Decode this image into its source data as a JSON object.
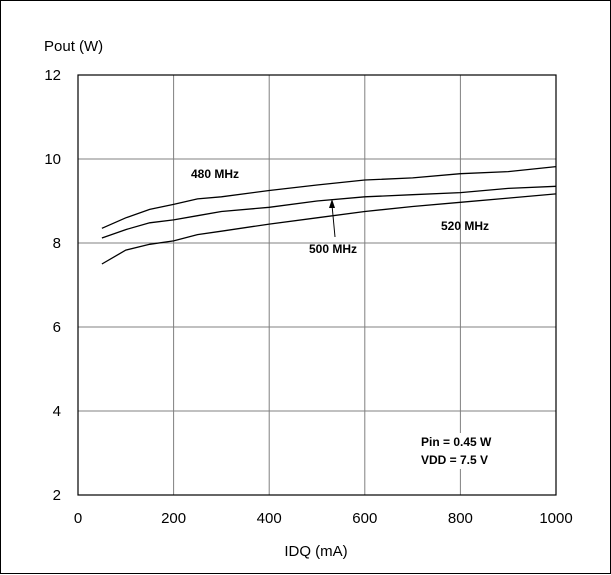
{
  "chart_data": {
    "type": "line",
    "title": "",
    "xlabel": "IDQ (mA)",
    "ylabel": "Pout (W)",
    "xlim": [
      0,
      1000
    ],
    "ylim": [
      2,
      12
    ],
    "x_ticks": [
      0,
      200,
      400,
      600,
      800,
      1000
    ],
    "y_ticks": [
      2,
      4,
      6,
      8,
      10,
      12
    ],
    "grid": true,
    "legend": "none",
    "x": [
      50,
      100,
      150,
      200,
      250,
      300,
      400,
      500,
      600,
      700,
      800,
      900,
      1000
    ],
    "series": [
      {
        "name": "480 MHz",
        "values": [
          8.35,
          8.6,
          8.8,
          8.92,
          9.05,
          9.1,
          9.25,
          9.38,
          9.5,
          9.55,
          9.65,
          9.7,
          9.82
        ]
      },
      {
        "name": "500 MHz",
        "values": [
          8.12,
          8.32,
          8.48,
          8.55,
          8.65,
          8.75,
          8.85,
          9.0,
          9.1,
          9.15,
          9.2,
          9.3,
          9.35
        ]
      },
      {
        "name": "520 MHz",
        "values": [
          7.5,
          7.83,
          7.97,
          8.05,
          8.2,
          8.28,
          8.45,
          8.6,
          8.75,
          8.87,
          8.97,
          9.07,
          9.17
        ]
      }
    ],
    "annotations": {
      "label_480": "480 MHz",
      "label_500": "500 MHz",
      "label_520": "520 MHz",
      "pin": "Pin = 0.45 W",
      "vdd": "VDD = 7.5 V"
    },
    "line_color": "#000000",
    "grid_color": "#808080"
  }
}
